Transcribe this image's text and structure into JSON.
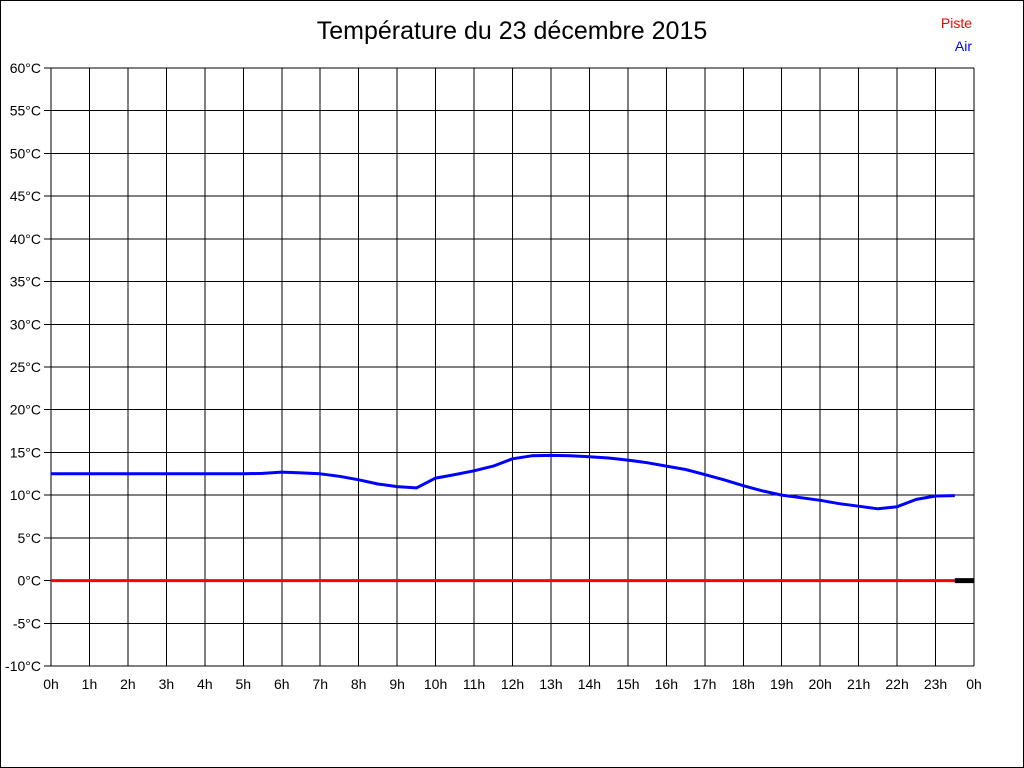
{
  "header": {
    "title": "Température du 23 décembre 2015",
    "legend": [
      {
        "label": "Piste",
        "color": "#ff0000"
      },
      {
        "label": "Air",
        "color": "#0000ff"
      }
    ]
  },
  "chart_data": {
    "type": "line",
    "title": "Température du 23 décembre 2015",
    "xlabel": "",
    "ylabel": "",
    "xlim": [
      0,
      24
    ],
    "ylim": [
      -10,
      60
    ],
    "x_tick_step_hours": 1,
    "y_tick_step_degrees": 5,
    "grid": true,
    "grid_color": "#000000",
    "legend_position": "top-right",
    "x_tick_labels": [
      "0h",
      "1h",
      "2h",
      "3h",
      "4h",
      "5h",
      "6h",
      "7h",
      "8h",
      "9h",
      "10h",
      "11h",
      "12h",
      "13h",
      "14h",
      "15h",
      "16h",
      "17h",
      "18h",
      "19h",
      "20h",
      "21h",
      "22h",
      "23h",
      "0h"
    ],
    "y_tick_labels": [
      "-10°C",
      "-5°C",
      "0°C",
      "5°C",
      "10°C",
      "15°C",
      "20°C",
      "25°C",
      "30°C",
      "35°C",
      "40°C",
      "45°C",
      "50°C",
      "55°C",
      "60°C"
    ],
    "series": [
      {
        "name": "Piste",
        "color": "#ff0000",
        "stroke_width": 3,
        "in_legend": true,
        "points": [
          [
            0,
            0.0
          ],
          [
            23.5,
            0.0
          ]
        ]
      },
      {
        "name": "Air",
        "color": "#0000ff",
        "stroke_width": 3,
        "in_legend": true,
        "points": [
          [
            0,
            12.5
          ],
          [
            0.5,
            12.5
          ],
          [
            1,
            12.5
          ],
          [
            1.5,
            12.5
          ],
          [
            2,
            12.5
          ],
          [
            2.5,
            12.5
          ],
          [
            3,
            12.5
          ],
          [
            3.5,
            12.5
          ],
          [
            4,
            12.5
          ],
          [
            4.5,
            12.5
          ],
          [
            5,
            12.5
          ],
          [
            5.5,
            12.55
          ],
          [
            6,
            12.7
          ],
          [
            6.5,
            12.6
          ],
          [
            7,
            12.5
          ],
          [
            7.5,
            12.2
          ],
          [
            8,
            11.8
          ],
          [
            8.5,
            11.3
          ],
          [
            9,
            11.0
          ],
          [
            9.5,
            10.85
          ],
          [
            10,
            12.0
          ],
          [
            10.5,
            12.4
          ],
          [
            11,
            12.85
          ],
          [
            11.5,
            13.4
          ],
          [
            12,
            14.25
          ],
          [
            12.5,
            14.6
          ],
          [
            13,
            14.65
          ],
          [
            13.5,
            14.6
          ],
          [
            14,
            14.5
          ],
          [
            14.5,
            14.35
          ],
          [
            15,
            14.1
          ],
          [
            15.5,
            13.8
          ],
          [
            16,
            13.4
          ],
          [
            16.5,
            13.0
          ],
          [
            17,
            12.4
          ],
          [
            17.5,
            11.8
          ],
          [
            18,
            11.1
          ],
          [
            18.5,
            10.5
          ],
          [
            19,
            10.0
          ],
          [
            19.5,
            9.7
          ],
          [
            20,
            9.4
          ],
          [
            20.5,
            9.0
          ],
          [
            21,
            8.7
          ],
          [
            21.5,
            8.4
          ],
          [
            22,
            8.65
          ],
          [
            22.5,
            9.5
          ],
          [
            23,
            9.9
          ],
          [
            23.5,
            9.95
          ]
        ]
      },
      {
        "name": "Piste-end-segment",
        "color": "#000000",
        "stroke_width": 5,
        "in_legend": false,
        "points": [
          [
            23.5,
            0.0
          ],
          [
            24,
            0.0
          ]
        ]
      }
    ]
  }
}
